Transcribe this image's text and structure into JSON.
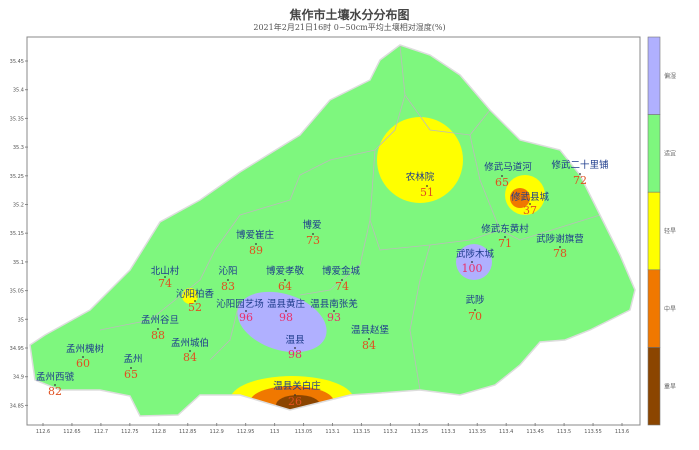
{
  "title": "焦作市土壤水分分布图",
  "subtitle": "2021年2月21日16时 0~50cm平均土壤相对湿度(%)",
  "x_ticks": [
    "112.6",
    "112.65",
    "112.7",
    "112.75",
    "112.8",
    "112.85",
    "112.9",
    "112.95",
    "113",
    "113.05",
    "113.1",
    "113.15",
    "113.2",
    "113.25",
    "113.3",
    "113.35",
    "113.4",
    "113.45",
    "113.5",
    "113.55",
    "113.6"
  ],
  "y_ticks": [
    "35.45",
    "35.4",
    "35.35",
    "35.3",
    "35.25",
    "35.2",
    "35.15",
    "35.1",
    "35.05",
    "35",
    "34.95",
    "34.9",
    "34.85"
  ],
  "legend": [
    {
      "label": "偏湿",
      "color": "#b0b0ff"
    },
    {
      "label": "适宜",
      "color": "#7ef77e"
    },
    {
      "label": "轻旱",
      "color": "#ffff00"
    },
    {
      "label": "中旱",
      "color": "#f07800"
    },
    {
      "label": "重旱",
      "color": "#8b4500"
    }
  ],
  "stations": [
    {
      "name": "农林院",
      "value": "51"
    },
    {
      "name": "修武马道河",
      "value": "65"
    },
    {
      "name": "修武二十里铺",
      "value": "72"
    },
    {
      "name": "修武县城",
      "value": "37"
    },
    {
      "name": "修武东黄村",
      "value": "71"
    },
    {
      "name": "武陟谢旗营",
      "value": "78"
    },
    {
      "name": "武陟木城",
      "value": "100"
    },
    {
      "name": "武陟",
      "value": "70"
    },
    {
      "name": "博爱崔庄",
      "value": "89"
    },
    {
      "name": "博爱",
      "value": "73"
    },
    {
      "name": "北山村",
      "value": "74"
    },
    {
      "name": "沁阳",
      "value": "83"
    },
    {
      "name": "博爱孝敬",
      "value": "64"
    },
    {
      "name": "博爱金城",
      "value": "74"
    },
    {
      "name": "沁阳柏香",
      "value": "52"
    },
    {
      "name": "沁阳园艺场",
      "value": "96"
    },
    {
      "name": "温县黄庄",
      "value": "98"
    },
    {
      "name": "温县南张羌",
      "value": "93"
    },
    {
      "name": "温县",
      "value": "98"
    },
    {
      "name": "温县赵堡",
      "value": "84"
    },
    {
      "name": "孟州谷旦",
      "value": "88"
    },
    {
      "name": "孟州城伯",
      "value": "84"
    },
    {
      "name": "孟州槐树",
      "value": "60"
    },
    {
      "name": "孟州",
      "value": "65"
    },
    {
      "name": "孟州西虢",
      "value": "82"
    },
    {
      "name": "温县关白庄",
      "value": "26"
    }
  ]
}
